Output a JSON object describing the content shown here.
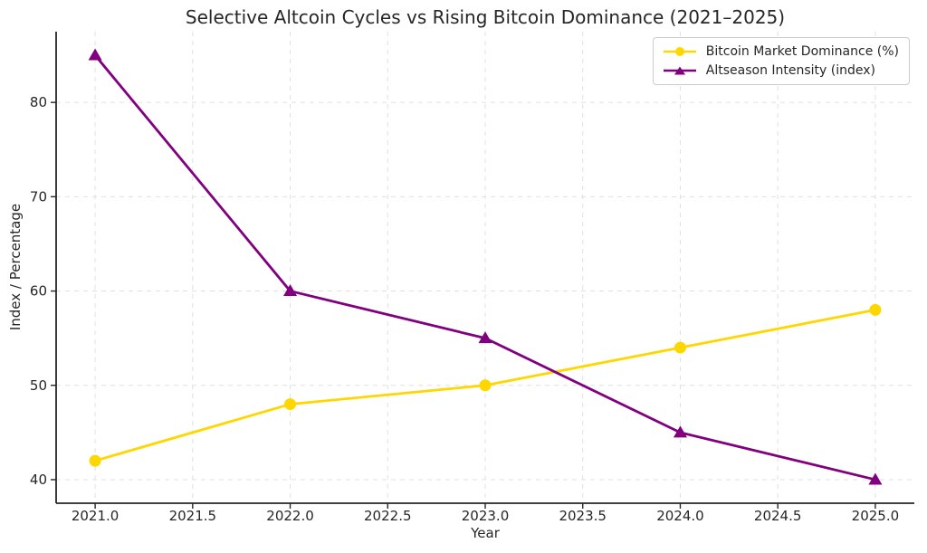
{
  "figure": {
    "background": "#ffffff"
  },
  "chart_data": {
    "type": "line",
    "title": "Selective Altcoin Cycles vs Rising Bitcoin Dominance (2021–2025)",
    "xlabel": "Year",
    "ylabel": "Index / Percentage",
    "x": [
      2021,
      2022,
      2023,
      2024,
      2025
    ],
    "series": [
      {
        "name": "Bitcoin Market Dominance (%)",
        "values": [
          42,
          48,
          50,
          54,
          58
        ],
        "color": "#FFD700",
        "marker": "circle"
      },
      {
        "name": "Altseason Intensity (index)",
        "values": [
          85,
          60,
          55,
          45,
          40
        ],
        "color": "#800080",
        "marker": "triangle-up"
      }
    ],
    "x_tick_values": [
      2021,
      2021.5,
      2022,
      2022.5,
      2023,
      2023.5,
      2024,
      2024.5,
      2025
    ],
    "x_tick_labels": [
      "2021.0",
      "2021.5",
      "2022.0",
      "2022.5",
      "2023.0",
      "2023.5",
      "2024.0",
      "2024.5",
      "2025.0"
    ],
    "y_tick_values": [
      40,
      50,
      60,
      70,
      80
    ],
    "y_tick_labels": [
      "40",
      "50",
      "60",
      "70",
      "80"
    ],
    "xlim": [
      2020.8,
      2025.2
    ],
    "ylim": [
      37.5,
      87.5
    ],
    "grid": true,
    "grid_color": "#e0e0e0",
    "axis_color": "#262626",
    "text_color": "#262626",
    "legend_position": "upper right"
  }
}
